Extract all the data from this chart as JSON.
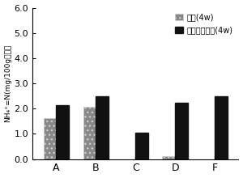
{
  "categories": [
    "A",
    "B",
    "C",
    "D",
    "F"
  ],
  "series1_label": "作土(4w)",
  "series2_label": "堆積泥＋作土(4w)",
  "series1_values": [
    1.62,
    2.08,
    0.0,
    0.12,
    0.0
  ],
  "series2_values": [
    2.15,
    2.5,
    1.05,
    2.22,
    2.5
  ],
  "series1_color": "#888888",
  "series2_color": "#111111",
  "ylabel_line1": "NH₄⁺=N(mg/100g",
  "ylabel_line2": "乾土）",
  "ylim": [
    0.0,
    6.0
  ],
  "yticks": [
    0.0,
    1.0,
    2.0,
    3.0,
    4.0,
    5.0,
    6.0
  ],
  "bar_width": 0.32,
  "background_color": "#ffffff"
}
